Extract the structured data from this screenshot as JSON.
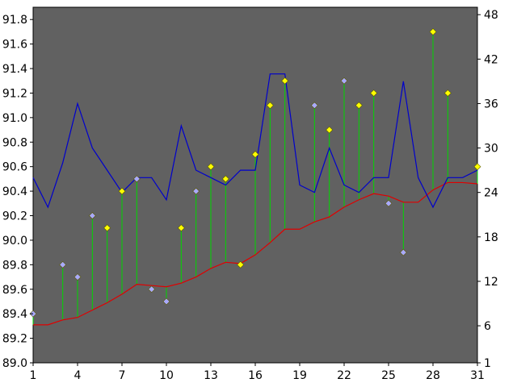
{
  "chart_data": {
    "type": "line",
    "x": [
      1,
      2,
      3,
      4,
      5,
      6,
      7,
      8,
      9,
      10,
      11,
      12,
      13,
      14,
      15,
      16,
      17,
      18,
      19,
      20,
      21,
      22,
      23,
      24,
      25,
      26,
      27,
      28,
      29,
      30,
      31
    ],
    "x_ticks": [
      "1",
      "4",
      "7",
      "10",
      "13",
      "16",
      "19",
      "22",
      "25",
      "28",
      "31"
    ],
    "xlim": [
      1,
      31
    ],
    "y_left": {
      "ylim": [
        89.0,
        91.9
      ],
      "ticks": [
        "89.0",
        "89.2",
        "89.4",
        "89.6",
        "89.8",
        "90.0",
        "90.2",
        "90.4",
        "90.6",
        "90.8",
        "91.0",
        "91.2",
        "91.4",
        "91.6",
        "91.8"
      ]
    },
    "y_right": {
      "ylim": [
        1,
        49
      ],
      "ticks": [
        "1",
        "6",
        "12",
        "18",
        "24",
        "30",
        "36",
        "42",
        "48"
      ]
    },
    "series": [
      {
        "role": "points",
        "axis": "left",
        "values": [
          89.4,
          null,
          89.8,
          89.7,
          90.2,
          90.1,
          90.4,
          90.5,
          89.6,
          89.5,
          90.1,
          90.4,
          90.6,
          90.5,
          89.8,
          90.7,
          91.1,
          91.3,
          null,
          91.1,
          90.9,
          91.3,
          91.1,
          91.2,
          90.3,
          89.9,
          null,
          91.7,
          91.2,
          null,
          90.6
        ],
        "direction": [
          "down",
          null,
          "down",
          "down",
          "down",
          "up",
          "up",
          "down",
          "down",
          "down",
          "up",
          "down",
          "up",
          "up",
          "up",
          "up",
          "up",
          "up",
          null,
          "down",
          "up",
          "down",
          "up",
          "up",
          "down",
          "down",
          null,
          "up",
          "up",
          null,
          "up"
        ]
      },
      {
        "role": "average",
        "axis": "left",
        "values": [
          89.31,
          89.31,
          89.35,
          89.37,
          89.43,
          89.49,
          89.56,
          89.64,
          89.63,
          89.62,
          89.65,
          89.7,
          89.77,
          89.82,
          89.81,
          89.88,
          89.98,
          90.09,
          90.09,
          90.15,
          90.19,
          90.27,
          90.33,
          90.38,
          90.36,
          90.31,
          90.31,
          90.41,
          90.47,
          90.47,
          90.46
        ]
      },
      {
        "role": "volume",
        "axis": "right",
        "values": [
          26,
          22,
          28,
          36,
          30,
          27,
          24,
          26,
          26,
          23,
          33,
          27,
          26,
          25,
          27,
          27,
          40,
          40,
          25,
          24,
          30,
          25,
          24,
          26,
          26,
          39,
          26,
          22,
          26,
          26,
          27
        ]
      }
    ],
    "colors": {
      "plot_background": "#616161",
      "points_up": "#ffff00",
      "points_down": "#a9a9ff",
      "points_outline": "#5a5a00",
      "stems": "#00d800",
      "average": "#e00000",
      "volume": "#0000cc"
    },
    "grid": false,
    "legend": "none"
  }
}
